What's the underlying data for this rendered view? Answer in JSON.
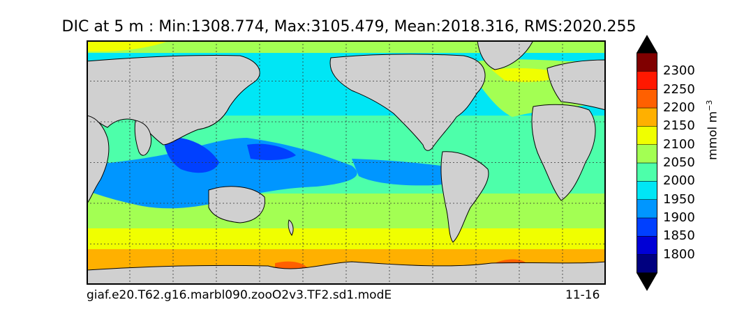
{
  "title": "DIC at 5 m : Min:1308.774, Max:3105.479, Mean:2018.316, RMS:2020.255",
  "footer": {
    "run_name": "giaf.e20.T62.g16.marbl090.zooO2v3.TF2.sd1.modE",
    "period": "11-16"
  },
  "colorbar": {
    "units_base": "mmol m",
    "units_exp": "−3",
    "levels": [
      "1800",
      "1850",
      "1900",
      "1950",
      "2000",
      "2050",
      "2100",
      "2150",
      "2200",
      "2250",
      "2300"
    ],
    "colors": [
      "#00007f",
      "#0000d6",
      "#0040ff",
      "#0096ff",
      "#00e6f5",
      "#4dffaa",
      "#a3ff53",
      "#f0ff00",
      "#ffb000",
      "#ff6000",
      "#ff1800",
      "#800000"
    ]
  },
  "map": {
    "land_color": "#d0d0d0",
    "graticule": "dotted"
  }
}
